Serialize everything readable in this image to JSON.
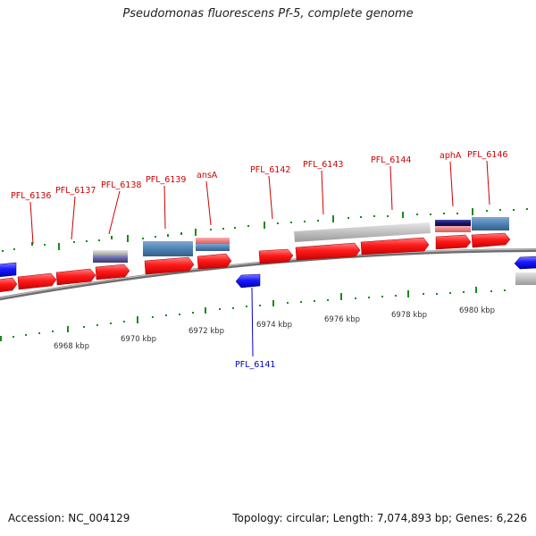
{
  "title": "Pseudomonas fluorescens Pf-5, complete genome",
  "footer": {
    "accession": "Accession: NC_004129",
    "stats": "Topology: circular; Length: 7,074,893 bp; Genes: 6,226"
  },
  "colors": {
    "gene_forward": "#ff1a1a",
    "gene_reverse": "#1a1aff",
    "backbone": "#808080",
    "ticks": "#1a8a1a",
    "label_forward": "#cc0000",
    "label_reverse": "#0000cc",
    "feature_steelblue": "#4f83b7",
    "feature_gray": "#c0c0c0",
    "feature_navy": "#16166e",
    "feature_salmon": "#f08080"
  },
  "scale_labels": [
    "6968 kbp",
    "6970 kbp",
    "6972 kbp",
    "6974 kbp",
    "6976 kbp",
    "6978 kbp",
    "6980 kbp"
  ],
  "gene_labels": [
    "PFL_6136",
    "PFL_6137",
    "PFL_6138",
    "PFL_6139",
    "ansA",
    "PFL_6142",
    "PFL_6143",
    "PFL_6144",
    "aphA",
    "PFL_6146",
    "PFL_6141"
  ]
}
